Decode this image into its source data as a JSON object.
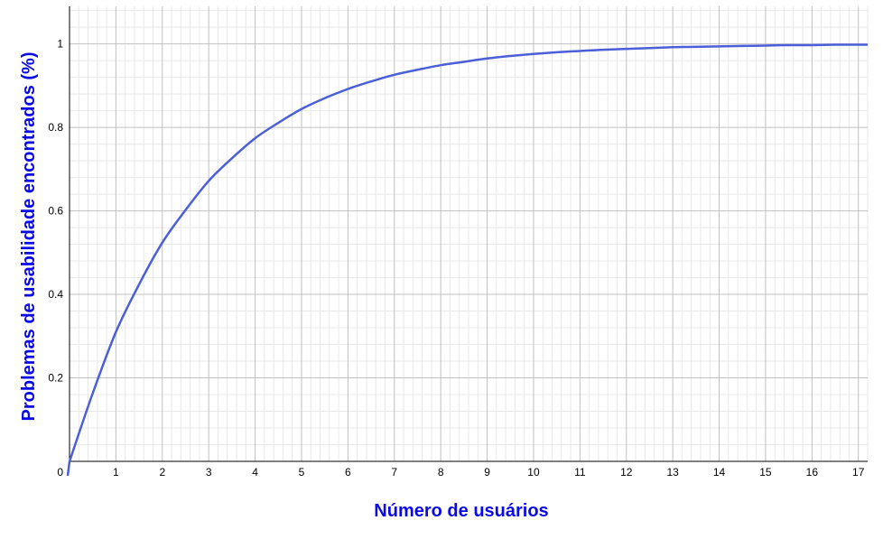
{
  "chart_data": {
    "type": "line",
    "xlabel": "Número de usuários",
    "ylabel": "Problemas de usabilidade encontrados (%)",
    "xlim": [
      0,
      17.2
    ],
    "ylim": [
      0,
      1.09
    ],
    "x_ticks": [
      "0",
      "1",
      "2",
      "3",
      "4",
      "5",
      "6",
      "7",
      "8",
      "9",
      "10",
      "11",
      "12",
      "13",
      "14",
      "15",
      "16",
      "17"
    ],
    "y_ticks": [
      "0.2",
      "0.4",
      "0.6",
      "0.8",
      "1"
    ],
    "grid": true,
    "series": [
      {
        "x": [
          0,
          0.5,
          1,
          1.5,
          2,
          2.5,
          3,
          3.5,
          4,
          4.5,
          5,
          5.5,
          6,
          6.5,
          7,
          7.5,
          8,
          8.5,
          9,
          9.5,
          10,
          10.5,
          11,
          11.5,
          12,
          12.5,
          13,
          13.5,
          14,
          14.5,
          15,
          15.5,
          16,
          16.5,
          17,
          17.2
        ],
        "values": [
          0,
          0.163,
          0.31,
          0.424,
          0.524,
          0.602,
          0.672,
          0.726,
          0.774,
          0.811,
          0.844,
          0.87,
          0.892,
          0.91,
          0.926,
          0.938,
          0.949,
          0.957,
          0.965,
          0.971,
          0.976,
          0.98,
          0.983,
          0.986,
          0.988,
          0.99,
          0.992,
          0.993,
          0.994,
          0.995,
          0.996,
          0.997,
          0.997,
          0.998,
          0.998,
          0.998
        ]
      }
    ],
    "colors": {
      "line": "#4a5fd8",
      "axis_title": "#0a0ae6",
      "grid_major": "#c0c0c0",
      "grid_minor": "#e8e8e8"
    }
  }
}
